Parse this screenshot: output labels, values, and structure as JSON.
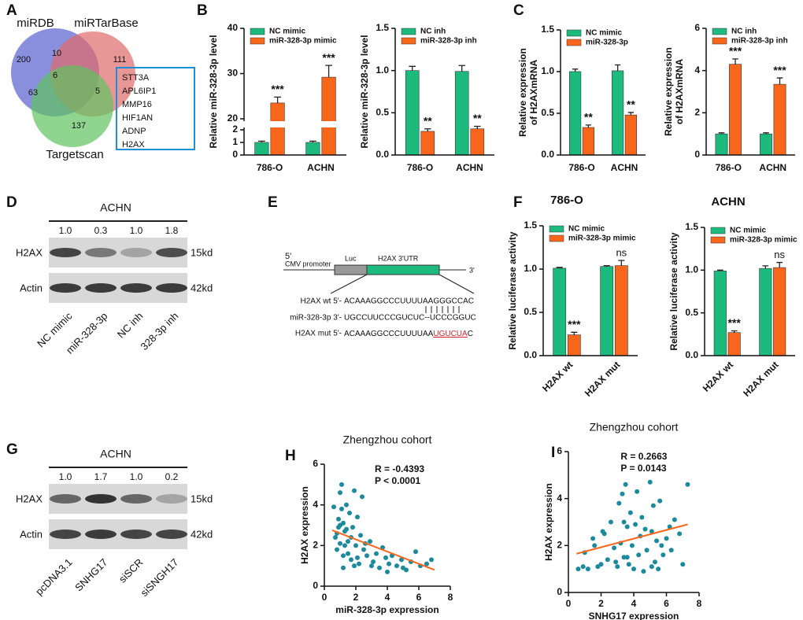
{
  "panel_labels": [
    "A",
    "B",
    "C",
    "D",
    "E",
    "F",
    "G",
    "H",
    "I"
  ],
  "venn": {
    "sets": [
      "miRDB",
      "miRTarBase",
      "Targetscan"
    ],
    "regions": [
      200,
      10,
      111,
      6,
      63,
      5,
      137
    ],
    "genes": [
      "STT3A",
      "APL6IP1",
      "MMP16",
      "HIF1AN",
      "ADNP",
      "H2AX"
    ]
  },
  "blots": [
    {
      "title": "ACHN",
      "ratios": [
        "1.0",
        "0.3",
        "1.0",
        "1.8"
      ],
      "rows": [
        {
          "name": "H2AX",
          "size": "15kd"
        },
        {
          "name": "Actin",
          "size": "42kd"
        }
      ],
      "lanes": [
        "NC mimic",
        "miR-328-3p",
        "NC inh",
        "328-3p inh"
      ]
    },
    {
      "title": "ACHN",
      "ratios": [
        "1.0",
        "1.7",
        "1.0",
        "0.2"
      ],
      "rows": [
        {
          "name": "H2AX",
          "size": "15kd"
        },
        {
          "name": "Actin",
          "size": "42kd"
        }
      ],
      "lanes": [
        "pcDNA3.1",
        "SNHG17",
        "siSCR",
        "siSNGH17"
      ]
    }
  ],
  "construct": {
    "five_prime": "5'",
    "promoter": "CMV promoter",
    "luc": "Luc",
    "utr": "H2AX 3'UTR",
    "three_prime": "3'",
    "rows": [
      {
        "name": "H2AX wt 5'-",
        "seq": "ACAAAGGCCCUUUUAAGGGCCAC"
      },
      {
        "name": "miR-328-3p 3'-",
        "seq": "UGCCUUCCCGUCUC--UCCCGGUC"
      },
      {
        "name": "H2AX mut 5'-",
        "seq": "ACAAAGGCCCUUUUAA",
        "mutation": "UGUCUA",
        "tail": "C"
      }
    ]
  },
  "chart_data": [
    {
      "type": "bar",
      "ylabel": "Relative miR-328-3p level",
      "categories": [
        "786-O",
        "ACHN"
      ],
      "ylim": [
        0,
        40
      ],
      "ybreak": [
        2,
        20
      ],
      "yticks": [
        0,
        1,
        2,
        20,
        30,
        40
      ],
      "legend": "upper left",
      "series": [
        {
          "name": "NC mimic",
          "color": "#1dba7e",
          "values": [
            1,
            1
          ],
          "errors": [
            0.1,
            0.1
          ]
        },
        {
          "name": "miR-328-3p mimic",
          "color": "#f7661b",
          "values": [
            23.5,
            29.2
          ],
          "errors": [
            1.3,
            2.6
          ],
          "labels": [
            "***",
            "***"
          ]
        }
      ]
    },
    {
      "type": "bar",
      "ylabel": "Relative miR-328-3p level",
      "categories": [
        "786-O",
        "ACHN"
      ],
      "ylim": [
        0,
        1.5
      ],
      "yticks": [
        {
          "value": 0,
          "label": "0.0"
        },
        {
          "value": 0.5,
          "label": "0.5"
        },
        {
          "value": 1,
          "label": "1.0"
        },
        {
          "value": 1.5,
          "label": "1.5"
        }
      ],
      "legend": "upper left",
      "series": [
        {
          "name": "NC inh",
          "color": "#1dba7e",
          "values": [
            1.0,
            0.99
          ],
          "errors": [
            0.05,
            0.07
          ]
        },
        {
          "name": "miR-328-3p inh",
          "color": "#f7661b",
          "values": [
            0.28,
            0.31
          ],
          "errors": [
            0.03,
            0.03
          ],
          "labels": [
            "**",
            "**"
          ]
        }
      ]
    },
    {
      "type": "bar",
      "ylabel": [
        "Relative expression",
        "of H2AXmRNA"
      ],
      "categories": [
        "786-O",
        "ACHN"
      ],
      "ylim": [
        0,
        1.5
      ],
      "yticks": [
        {
          "value": 0,
          "label": "0.0"
        },
        {
          "value": 0.5,
          "label": "0.5"
        },
        {
          "value": 1,
          "label": "1.0"
        },
        {
          "value": 1.5,
          "label": "1.5"
        }
      ],
      "legend": "upper left",
      "series": [
        {
          "name": "NC mimic",
          "color": "#1dba7e",
          "values": [
            1.0,
            1.01
          ],
          "errors": [
            0.03,
            0.07
          ]
        },
        {
          "name": "miR-328-3p",
          "color": "#f7661b",
          "values": [
            0.33,
            0.48
          ],
          "errors": [
            0.03,
            0.03
          ],
          "labels": [
            "**",
            "**"
          ]
        }
      ]
    },
    {
      "type": "bar",
      "ylabel": [
        "Relative expression",
        "of H2AXmRNA"
      ],
      "categories": [
        "786-O",
        "ACHN"
      ],
      "ylim": [
        0,
        6
      ],
      "yticks": [
        0,
        2,
        4,
        6
      ],
      "legend": "upper left",
      "series": [
        {
          "name": "NC inh",
          "color": "#1dba7e",
          "values": [
            1.0,
            1.0
          ],
          "errors": [
            0.05,
            0.05
          ]
        },
        {
          "name": "miR-328-3p inh",
          "color": "#f7661b",
          "values": [
            4.3,
            3.35
          ],
          "errors": [
            0.25,
            0.3
          ],
          "labels": [
            "***",
            "***"
          ]
        }
      ]
    },
    {
      "type": "bar",
      "title": "786-O",
      "ylabel": "Relative luciferase activity",
      "categories": [
        "H2AX wt",
        "H2AX mut"
      ],
      "xtick_rotation": 45,
      "ylim": [
        0,
        1.5
      ],
      "yticks": [
        {
          "value": 0,
          "label": "0.0"
        },
        {
          "value": 0.5,
          "label": "0.5"
        },
        {
          "value": 1,
          "label": "1.0"
        },
        {
          "value": 1.5,
          "label": "1.5"
        }
      ],
      "legend": "upper left",
      "series": [
        {
          "name": "NC mimic",
          "color": "#1dba7e",
          "values": [
            1.01,
            1.03
          ],
          "errors": [
            0.01,
            0.01
          ]
        },
        {
          "name": "miR-328-3p mimic",
          "color": "#f7661b",
          "values": [
            0.24,
            1.04
          ],
          "errors": [
            0.03,
            0.06
          ],
          "labels": [
            "***",
            "ns"
          ]
        }
      ]
    },
    {
      "type": "bar",
      "title": "ACHN",
      "ylabel": "Relative luciferase activity",
      "categories": [
        "H2AX wt",
        "H2AX mut"
      ],
      "xtick_rotation": 45,
      "ylim": [
        0,
        1.5
      ],
      "yticks": [
        {
          "value": 0,
          "label": "0.0"
        },
        {
          "value": 0.5,
          "label": "0.5"
        },
        {
          "value": 1,
          "label": "1.0"
        },
        {
          "value": 1.5,
          "label": "1.5"
        }
      ],
      "legend": "upper left",
      "series": [
        {
          "name": "NC mimic",
          "color": "#1dba7e",
          "values": [
            0.99,
            1.02
          ],
          "errors": [
            0.01,
            0.03
          ]
        },
        {
          "name": "miR-328-3p mimic",
          "color": "#f7661b",
          "values": [
            0.27,
            1.03
          ],
          "errors": [
            0.02,
            0.06
          ],
          "labels": [
            "***",
            "ns"
          ]
        }
      ]
    },
    {
      "type": "scatter",
      "title": "Zhengzhou cohort",
      "xlabel": "miR-328-3p expression",
      "ylabel": "H2AX expression",
      "annotations": [
        "R = -0.4393",
        "P < 0.0001"
      ],
      "color": "#1a8a9c",
      "fit_color": "#f7661b",
      "xlim": [
        0,
        8
      ],
      "xticks": [
        0,
        2,
        4,
        6,
        8
      ],
      "ylim": [
        0,
        6
      ],
      "yticks": [
        0,
        2,
        4,
        6
      ],
      "x": [
        0.6,
        0.7,
        0.8,
        0.9,
        1.0,
        1.0,
        1.1,
        1.2,
        1.2,
        1.3,
        1.4,
        1.5,
        1.6,
        1.7,
        1.8,
        1.9,
        2.0,
        2.1,
        2.2,
        2.3,
        2.5,
        2.7,
        2.9,
        3.1,
        3.3,
        3.5,
        3.7,
        3.9,
        4.1,
        4.3,
        4.6,
        4.9,
        5.2,
        5.5,
        5.8,
        6.1,
        6.5,
        6.8,
        0.9,
        1.1,
        1.3,
        1.5,
        1.7,
        1.9,
        2.1,
        2.4,
        0.8,
        1.0,
        1.2,
        1.4,
        3.0,
        2.6,
        4.0,
        5.0
      ],
      "y": [
        3.9,
        2.4,
        1.8,
        3.3,
        4.6,
        2.1,
        5.0,
        3.1,
        1.5,
        2.7,
        4.0,
        2.2,
        3.6,
        1.3,
        2.9,
        4.7,
        2.0,
        3.4,
        1.1,
        2.5,
        1.8,
        1.5,
        2.2,
        1.2,
        1.6,
        0.9,
        1.9,
        1.4,
        1.1,
        1.5,
        1.0,
        1.3,
        0.8,
        1.2,
        1.7,
        1.0,
        1.1,
        1.3,
        2.9,
        3.8,
        2.0,
        1.6,
        2.4,
        1.0,
        1.4,
        4.4,
        2.6,
        3.0,
        0.9,
        2.8,
        1.0,
        2.1,
        0.7,
        0.9
      ],
      "fit_x": [
        0.5,
        7
      ],
      "fit_y": [
        2.75,
        0.8
      ]
    },
    {
      "type": "scatter",
      "title": "Zhengzhou cohort",
      "xlabel": "SNHG17 expression",
      "ylabel": "H2AX expression",
      "annotations": [
        "R = 0.2663",
        "P = 0.0143"
      ],
      "color": "#1a8a9c",
      "fit_color": "#f7661b",
      "xlim": [
        0,
        8
      ],
      "xticks": [
        0,
        2,
        4,
        6,
        8
      ],
      "ylim": [
        0,
        6
      ],
      "yticks": [
        0,
        2,
        4,
        6
      ],
      "x": [
        0.6,
        0.9,
        1.2,
        1.5,
        1.8,
        2.0,
        2.2,
        2.4,
        2.6,
        2.8,
        3.0,
        3.1,
        3.2,
        3.3,
        3.4,
        3.5,
        3.6,
        3.7,
        3.8,
        3.9,
        4.0,
        4.1,
        4.2,
        4.3,
        4.4,
        4.5,
        4.6,
        4.8,
        5.0,
        5.1,
        5.2,
        5.3,
        5.4,
        5.5,
        5.6,
        5.8,
        6.0,
        6.2,
        6.5,
        6.8,
        7.0,
        7.3,
        1.0,
        1.6,
        2.9,
        3.4,
        3.6,
        4.7,
        5.1,
        5.7,
        6.3,
        2.1
      ],
      "y": [
        1.0,
        1.1,
        1.0,
        2.3,
        1.1,
        1.2,
        2.5,
        1.4,
        3.0,
        1.9,
        1.1,
        3.8,
        2.1,
        4.2,
        1.5,
        4.6,
        2.8,
        1.2,
        3.4,
        2.0,
        1.0,
        2.9,
        4.3,
        1.6,
        2.4,
        3.2,
        0.9,
        1.8,
        4.7,
        2.6,
        3.7,
        1.3,
        2.2,
        1.0,
        3.9,
        1.6,
        2.3,
        2.8,
        3.1,
        2.5,
        1.2,
        4.6,
        1.7,
        2.0,
        1.3,
        3.0,
        1.5,
        2.7,
        1.1,
        2.0,
        1.8,
        2.6
      ],
      "fit_x": [
        0.5,
        7.3
      ],
      "fit_y": [
        1.65,
        2.9
      ]
    }
  ]
}
